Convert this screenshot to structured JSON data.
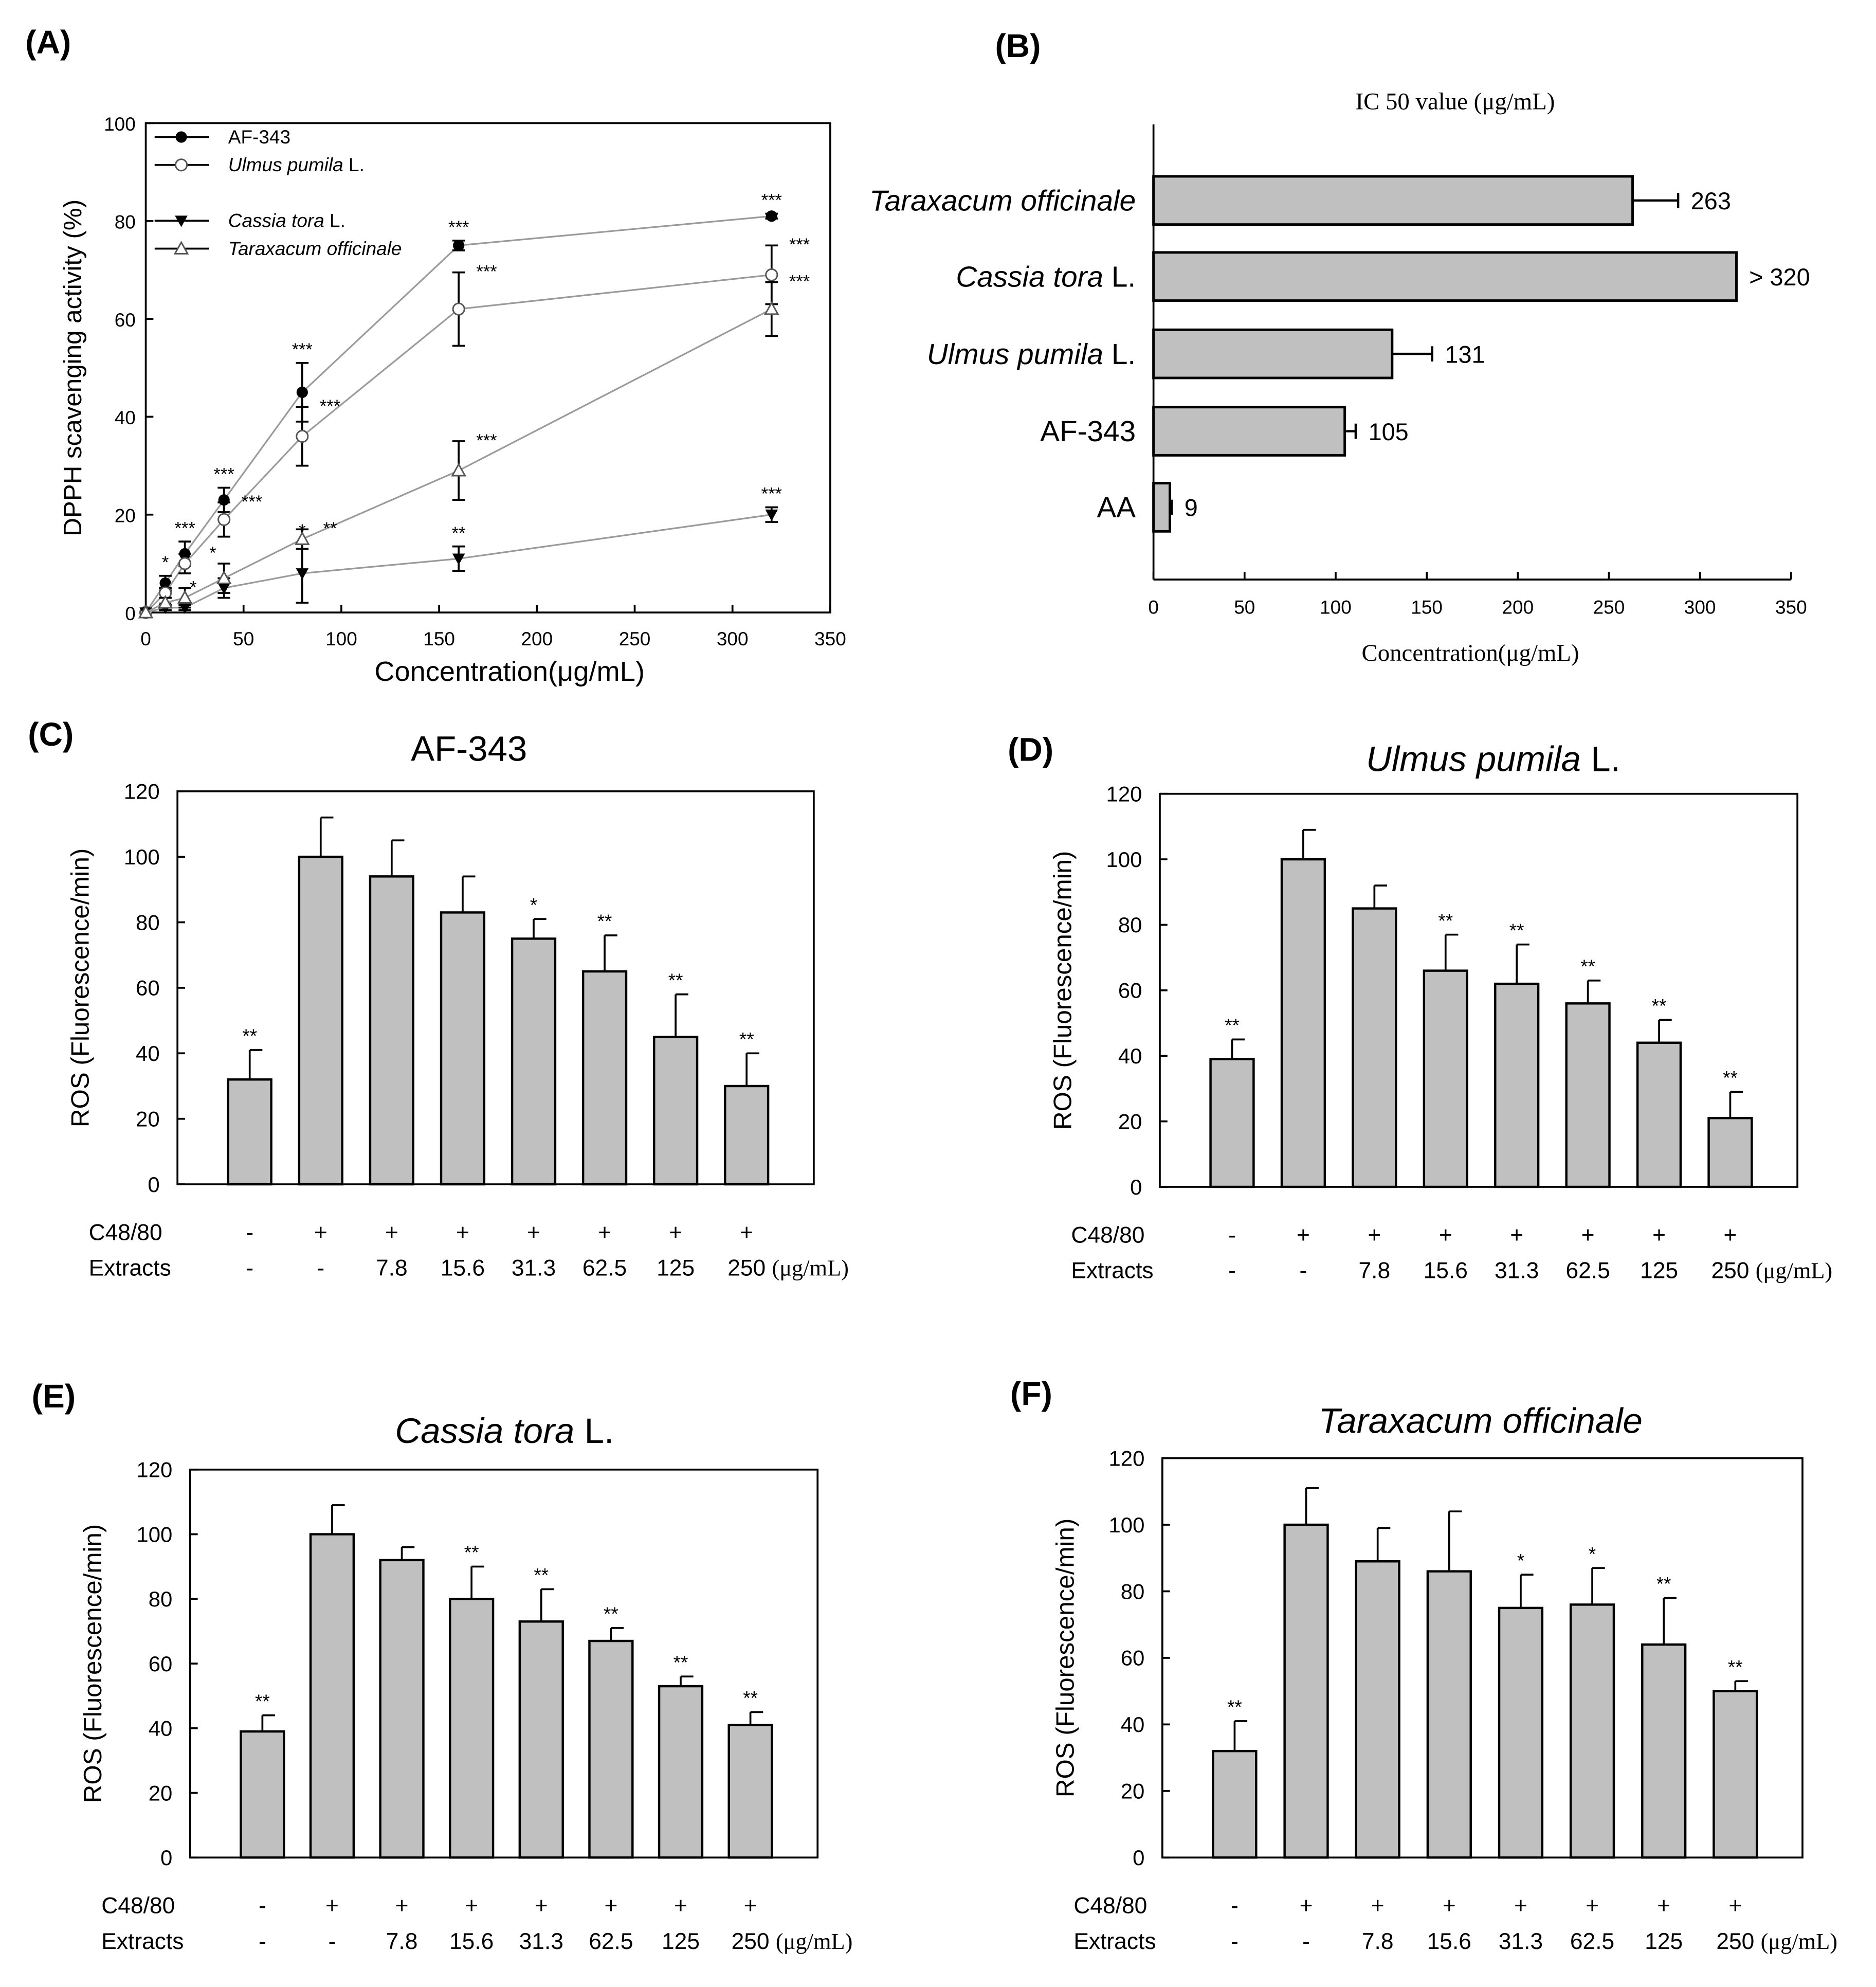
{
  "chart_data": [
    {
      "panel": "(A)",
      "type": "line",
      "xlabel": "Concentration(μg/mL)",
      "ylabel": "DPPH scavenging activity (%)",
      "xlim": [
        0,
        350
      ],
      "ylim": [
        0,
        100
      ],
      "xticks": [
        "0",
        "50",
        "100",
        "150",
        "200",
        "250",
        "300",
        "350"
      ],
      "yticks": [
        "0",
        "20",
        "40",
        "60",
        "80",
        "100"
      ],
      "x": [
        0,
        10,
        20,
        40,
        80,
        160,
        320
      ],
      "legend_position": "top-left",
      "series": [
        {
          "name": "AF-343",
          "name_suffix": "",
          "italic": false,
          "marker": "filled-circle",
          "values": [
            0,
            6,
            12,
            23,
            45,
            75,
            81
          ],
          "errors": [
            0,
            1.5,
            2.5,
            2.5,
            6,
            1,
            0.5
          ],
          "stars": [
            "",
            "*",
            "***",
            "***",
            "***",
            "***",
            "***"
          ]
        },
        {
          "name": "Ulmus pumila",
          "name_suffix": " L.",
          "italic": true,
          "marker": "open-circle",
          "values": [
            0,
            4,
            10,
            19,
            36,
            62,
            69
          ],
          "errors": [
            0,
            1,
            2,
            3.5,
            6,
            7.5,
            6
          ],
          "stars": [
            "",
            "*",
            "*",
            "***",
            "***",
            "***",
            "***"
          ]
        },
        {
          "name": "Cassia tora",
          "name_suffix": " L.",
          "italic": true,
          "marker": "filled-triangle-down",
          "values": [
            0,
            1,
            1,
            5,
            8,
            11,
            20
          ],
          "errors": [
            0,
            0.5,
            0.5,
            2,
            6,
            2.5,
            1.5
          ],
          "stars": [
            "",
            "",
            "",
            "",
            "*",
            "**",
            "***"
          ]
        },
        {
          "name": "Taraxacum officinale",
          "name_suffix": "",
          "italic": true,
          "marker": "open-triangle-up",
          "values": [
            0,
            2,
            3,
            7,
            15,
            29,
            62
          ],
          "errors": [
            0,
            1,
            2,
            3,
            2,
            6,
            5.5
          ],
          "stars": [
            "",
            "",
            "",
            "",
            "**",
            "***",
            "***"
          ]
        }
      ]
    },
    {
      "panel": "(B)",
      "type": "bar",
      "orientation": "horizontal",
      "title": "IC 50 value (μg/mL)",
      "xlabel": "Concentration(μg/mL)",
      "xlim": [
        0,
        350
      ],
      "xticks": [
        "0",
        "50",
        "100",
        "150",
        "200",
        "250",
        "300",
        "350"
      ],
      "categories": [
        {
          "name": "Taraxacum officinale",
          "suffix": "",
          "italic": true
        },
        {
          "name": "Cassia tora",
          "suffix": " L.",
          "italic": true
        },
        {
          "name": "Ulmus pumila",
          "suffix": " L.",
          "italic": true
        },
        {
          "name": "AF-343",
          "suffix": "",
          "italic": false
        },
        {
          "name": "AA",
          "suffix": "",
          "italic": false
        }
      ],
      "values": [
        263,
        320,
        131,
        105,
        9
      ],
      "errors": [
        25,
        0,
        22,
        6,
        1
      ],
      "value_labels": [
        "263",
        "> 320",
        "131",
        "105",
        "9"
      ]
    },
    {
      "panel": "(C)",
      "type": "bar",
      "title": "AF-343",
      "title_suffix": "",
      "title_italic": false,
      "ylabel": "ROS (Fluorescence/min)",
      "ylim": [
        0,
        120
      ],
      "yticks": [
        "0",
        "20",
        "40",
        "60",
        "80",
        "100",
        "120"
      ],
      "row_labels": [
        "C48/80",
        "Extracts"
      ],
      "c48_80": [
        "-",
        "+",
        "+",
        "+",
        "+",
        "+",
        "+",
        "+"
      ],
      "extracts": [
        "-",
        "-",
        "7.8",
        "15.6",
        "31.3",
        "62.5",
        "125",
        "250"
      ],
      "unit": "(μg/mL)",
      "values": [
        32,
        100,
        94,
        83,
        75,
        65,
        45,
        30
      ],
      "errors": [
        9,
        12,
        11,
        11,
        6,
        11,
        13,
        10
      ],
      "stars": [
        "**",
        "",
        "",
        "",
        "*",
        "**",
        "**",
        "**"
      ]
    },
    {
      "panel": "(D)",
      "type": "bar",
      "title": "Ulmus pumila",
      "title_suffix": " L.",
      "title_italic": true,
      "ylabel": "ROS (Fluorescence/min)",
      "ylim": [
        0,
        120
      ],
      "yticks": [
        "0",
        "20",
        "40",
        "60",
        "80",
        "100",
        "120"
      ],
      "row_labels": [
        "C48/80",
        "Extracts"
      ],
      "c48_80": [
        "-",
        "+",
        "+",
        "+",
        "+",
        "+",
        "+",
        "+"
      ],
      "extracts": [
        "-",
        "-",
        "7.8",
        "15.6",
        "31.3",
        "62.5",
        "125",
        "250"
      ],
      "unit": "(μg/mL)",
      "values": [
        39,
        100,
        85,
        66,
        62,
        56,
        44,
        21
      ],
      "errors": [
        6,
        9,
        7,
        11,
        12,
        7,
        7,
        8
      ],
      "stars": [
        "**",
        "",
        "",
        "**",
        "**",
        "**",
        "**",
        "**"
      ]
    },
    {
      "panel": "(E)",
      "type": "bar",
      "title": "Cassia tora",
      "title_suffix": " L.",
      "title_italic": true,
      "ylabel": "ROS (Fluorescence/min)",
      "ylim": [
        0,
        120
      ],
      "yticks": [
        "0",
        "20",
        "40",
        "60",
        "80",
        "100",
        "120"
      ],
      "row_labels": [
        "C48/80",
        "Extracts"
      ],
      "c48_80": [
        "-",
        "+",
        "+",
        "+",
        "+",
        "+",
        "+",
        "+"
      ],
      "extracts": [
        "-",
        "-",
        "7.8",
        "15.6",
        "31.3",
        "62.5",
        "125",
        "250"
      ],
      "unit": "(μg/mL)",
      "values": [
        39,
        100,
        92,
        80,
        73,
        67,
        53,
        41
      ],
      "errors": [
        5,
        9,
        4,
        10,
        10,
        4,
        3,
        4
      ],
      "stars": [
        "**",
        "",
        "",
        "**",
        "**",
        "**",
        "**",
        "**"
      ]
    },
    {
      "panel": "(F)",
      "type": "bar",
      "title": "Taraxacum officinale",
      "title_suffix": "",
      "title_italic": true,
      "ylabel": "ROS (Fluorescence/min)",
      "ylim": [
        0,
        120
      ],
      "yticks": [
        "0",
        "20",
        "40",
        "60",
        "80",
        "100",
        "120"
      ],
      "row_labels": [
        "C48/80",
        "Extracts"
      ],
      "c48_80": [
        "-",
        "+",
        "+",
        "+",
        "+",
        "+",
        "+",
        "+"
      ],
      "extracts": [
        "-",
        "-",
        "7.8",
        "15.6",
        "31.3",
        "62.5",
        "125",
        "250"
      ],
      "unit": "(μg/mL)",
      "values": [
        32,
        100,
        89,
        86,
        75,
        76,
        64,
        50
      ],
      "errors": [
        9,
        11,
        10,
        18,
        10,
        11,
        14,
        3
      ],
      "stars": [
        "**",
        "",
        "",
        "",
        "*",
        "*",
        "**",
        "**"
      ]
    }
  ],
  "colors": {
    "bar_fill": "#c0c0c0",
    "line": "#9a9a9a",
    "ink": "#000000"
  }
}
